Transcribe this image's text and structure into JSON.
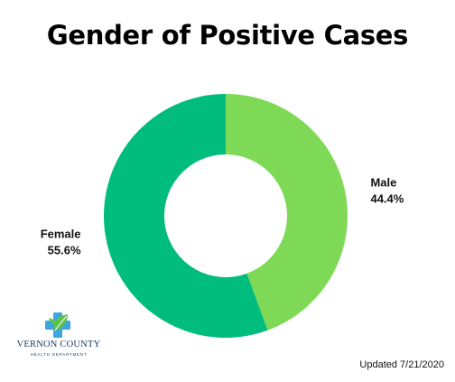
{
  "chart_data": {
    "type": "pie",
    "title": "Gender of Positive Cases",
    "categories": [
      "Male",
      "Female"
    ],
    "values": [
      44.4,
      55.6
    ],
    "value_labels": [
      "44.4%",
      "55.6%"
    ],
    "colors": [
      "#7ed957",
      "#00bd7e"
    ],
    "donut": true
  },
  "logo": {
    "name": "VERNON COUNTY",
    "subtitle": "HEALTH DEPARTMENT",
    "icon": "medical-cross-leaf-icon"
  },
  "footer": {
    "updated": "Updated 7/21/2020"
  }
}
